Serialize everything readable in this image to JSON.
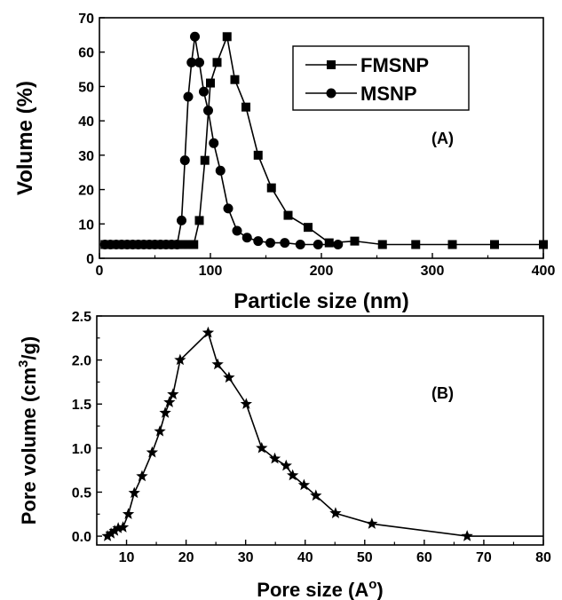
{
  "chart_data": [
    {
      "panel": "(A)",
      "type": "line",
      "xlabel": "Particle size (nm)",
      "ylabel": "Volume (%)",
      "xlim": [
        0,
        400
      ],
      "ylim": [
        0,
        70
      ],
      "xticks": [
        0,
        100,
        200,
        300,
        400
      ],
      "yticks": [
        0,
        10,
        20,
        30,
        40,
        50,
        60,
        70
      ],
      "legend_position": "top-right",
      "series": [
        {
          "name": "FMSNP",
          "marker": "square",
          "x": [
            5,
            10,
            15,
            20,
            25,
            30,
            35,
            40,
            45,
            50,
            55,
            60,
            65,
            70,
            75,
            80,
            85,
            90,
            95,
            100,
            106,
            115,
            122,
            132,
            143,
            155,
            170,
            188,
            207,
            230,
            255,
            285,
            318,
            356,
            400
          ],
          "y": [
            4,
            4,
            4,
            4,
            4,
            4,
            4,
            4,
            4,
            4,
            4,
            4,
            4,
            4,
            4,
            4,
            4,
            11,
            28.5,
            51,
            57,
            64.5,
            52,
            44,
            30,
            20.5,
            12.5,
            9,
            4.5,
            5,
            4,
            4,
            4,
            4,
            4
          ]
        },
        {
          "name": "MSNP",
          "marker": "circle",
          "x": [
            5,
            10,
            15,
            20,
            25,
            30,
            35,
            40,
            45,
            50,
            55,
            60,
            65,
            70,
            74,
            77,
            80,
            83,
            86,
            90,
            94,
            98,
            103,
            109,
            116,
            124,
            133,
            143,
            154,
            167,
            181,
            197,
            215
          ],
          "y": [
            4,
            4,
            4,
            4,
            4,
            4,
            4,
            4,
            4,
            4,
            4,
            4,
            4,
            4,
            11,
            28.5,
            47,
            57,
            64.5,
            57,
            48.5,
            43,
            33.5,
            25.5,
            14.5,
            8,
            6,
            5,
            4.5,
            4.5,
            4,
            4,
            4
          ]
        }
      ]
    },
    {
      "panel": "(B)",
      "type": "line",
      "xlabel": "Pore size (A",
      "xlabel_superscript": "o",
      "xlabel_close": ")",
      "ylabel": "Pore volume (cm",
      "ylabel_superscript": "3",
      "ylabel_close": "/g)",
      "xlim": [
        5,
        80
      ],
      "ylim": [
        -0.1,
        2.5
      ],
      "xticks": [
        10,
        20,
        30,
        40,
        50,
        60,
        70,
        80
      ],
      "yticks": [
        0.0,
        0.5,
        1.0,
        1.5,
        2.0,
        2.5
      ],
      "series": [
        {
          "name": "",
          "marker": "star",
          "x": [
            6.8,
            7.4,
            8.0,
            8.6,
            9.4,
            10.3,
            11.3,
            12.6,
            14.3,
            15.6,
            16.5,
            17.2,
            17.8,
            19.0,
            23.7,
            25.3,
            27.2,
            30.1,
            32.7,
            34.9,
            36.8,
            37.9,
            39.8,
            41.8,
            45.1,
            51.2,
            67.2,
            80.0
          ],
          "y": [
            0.0,
            0.03,
            0.06,
            0.09,
            0.1,
            0.25,
            0.49,
            0.68,
            0.95,
            1.19,
            1.4,
            1.52,
            1.61,
            2.0,
            2.31,
            1.95,
            1.8,
            1.5,
            1.0,
            0.88,
            0.8,
            0.69,
            0.58,
            0.46,
            0.26,
            0.14,
            0.0,
            0.0
          ],
          "marker_count": 27
        }
      ]
    }
  ]
}
